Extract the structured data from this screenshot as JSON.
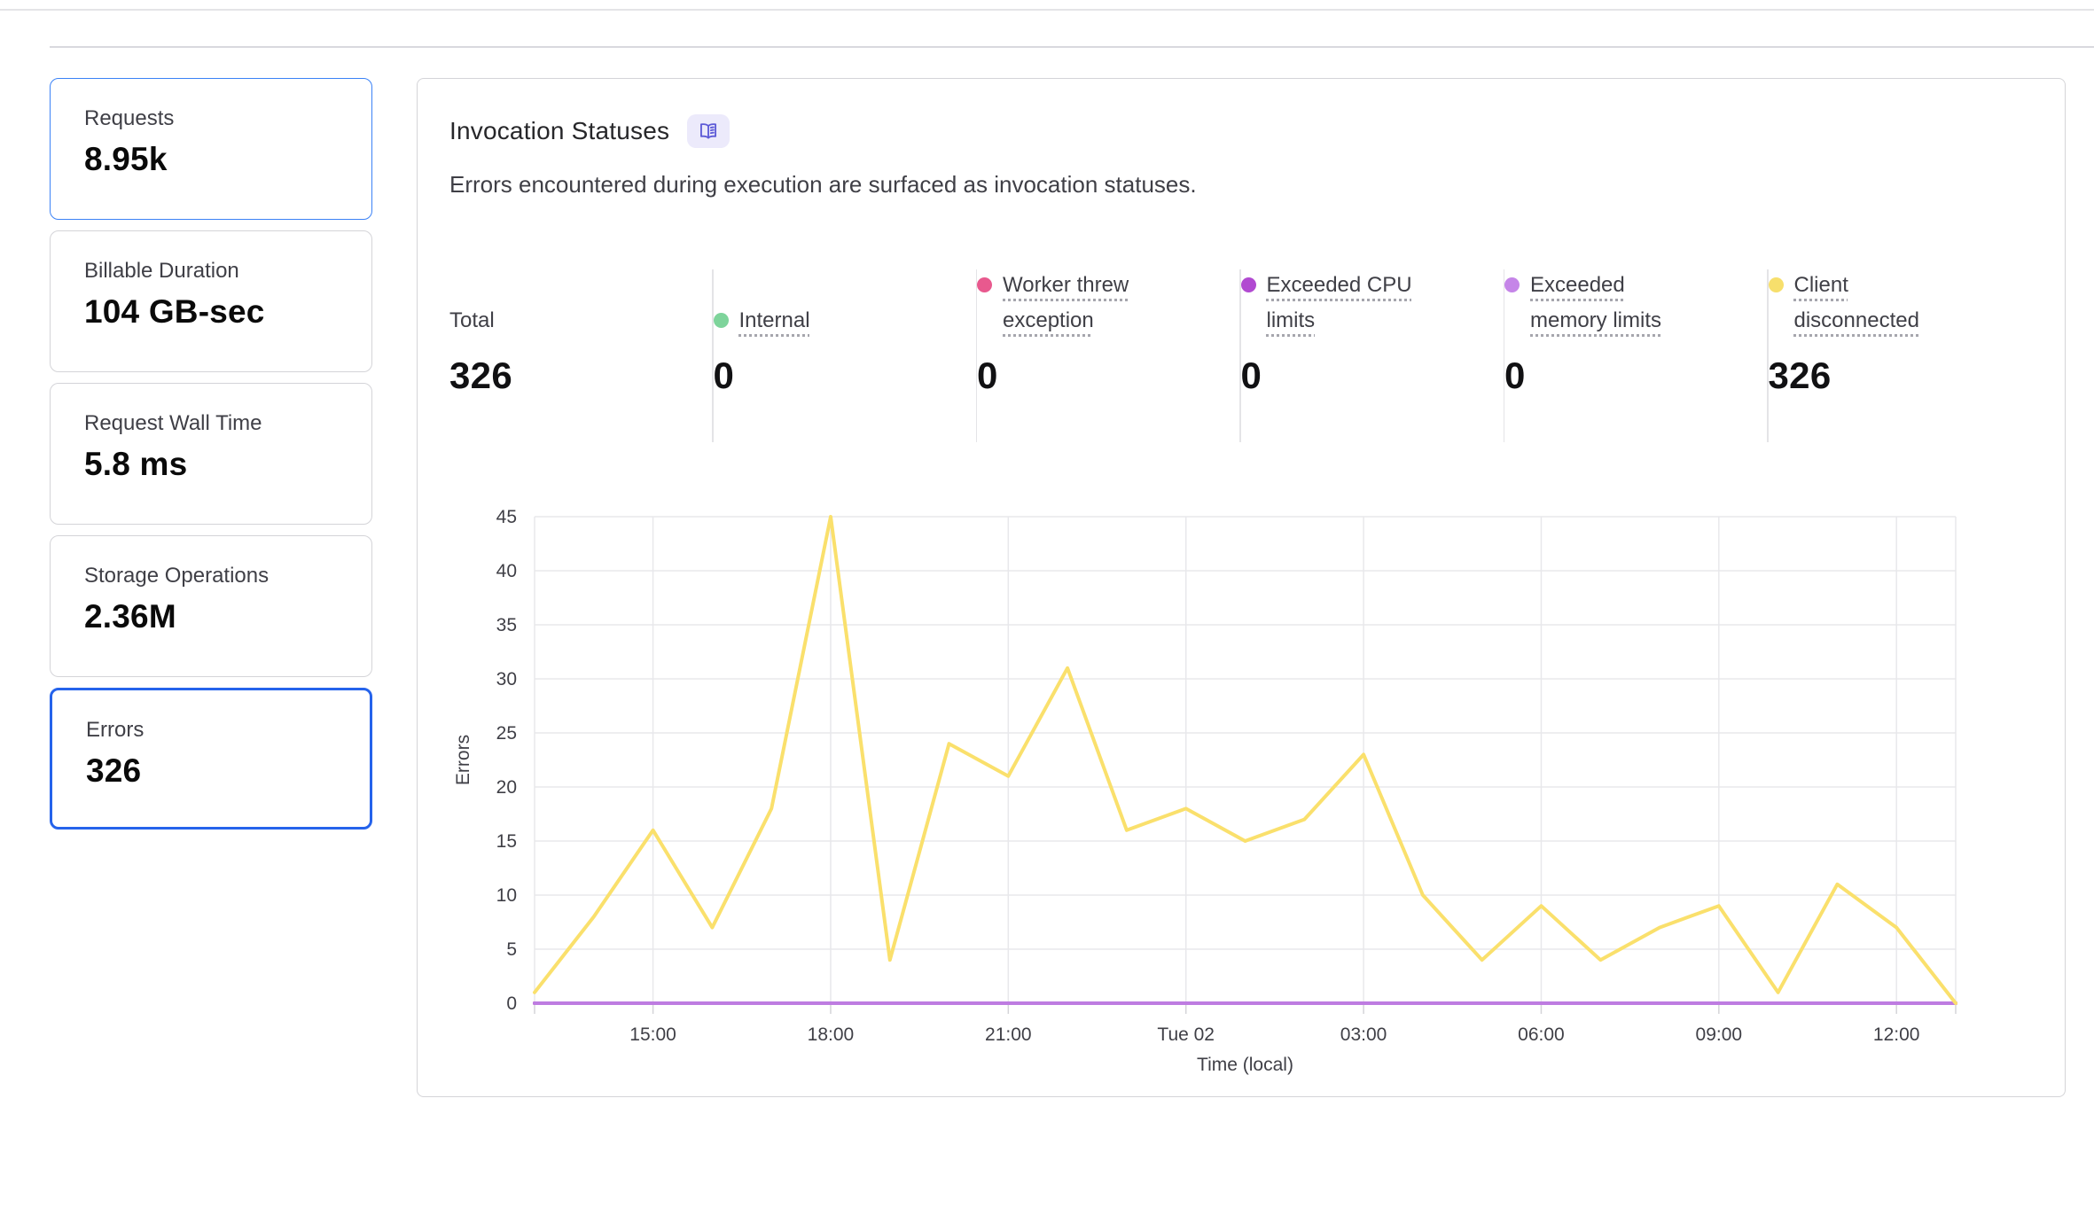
{
  "metric_cards": [
    {
      "label": "Requests",
      "value": "8.95k",
      "state": "selected"
    },
    {
      "label": "Billable Duration",
      "value": "104 GB-sec",
      "state": "default"
    },
    {
      "label": "Request Wall Time",
      "value": "5.8 ms",
      "state": "default"
    },
    {
      "label": "Storage Operations",
      "value": "2.36M",
      "state": "default"
    },
    {
      "label": "Errors",
      "value": "326",
      "state": "active"
    }
  ],
  "panel": {
    "title": "Invocation Statuses",
    "title_icon": "open-book-icon",
    "subtitle": "Errors encountered during execution are surfaced as invocation statuses.",
    "stats": [
      {
        "label": "Total",
        "value": "326",
        "dot_color": ""
      },
      {
        "label": "Internal",
        "value": "0",
        "dot_color": "#7ED49B"
      },
      {
        "label": "Worker threw\nexception",
        "value": "0",
        "dot_color": "#E8598E"
      },
      {
        "label": "Exceeded CPU\nlimits",
        "value": "0",
        "dot_color": "#B14AD1"
      },
      {
        "label": "Exceeded\nmemory limits",
        "value": "0",
        "dot_color": "#C585E8"
      },
      {
        "label": "Client\ndisconnected",
        "value": "326",
        "dot_color": "#F7DF6C"
      }
    ]
  },
  "chart_data": {
    "type": "line",
    "title": "",
    "xlabel": "Time (local)",
    "ylabel": "Errors",
    "ylim": [
      0,
      45
    ],
    "ytick_step": 5,
    "grid": true,
    "x": [
      "13:00",
      "14:00",
      "15:00",
      "16:00",
      "17:00",
      "18:00",
      "19:00",
      "20:00",
      "21:00",
      "22:00",
      "23:00",
      "Tue 02 00:00",
      "01:00",
      "02:00",
      "03:00",
      "04:00",
      "05:00",
      "06:00",
      "07:00",
      "08:00",
      "09:00",
      "10:00",
      "11:00",
      "12:00",
      "13:00"
    ],
    "x_tick_labels": [
      "15:00",
      "18:00",
      "21:00",
      "Tue 02",
      "03:00",
      "06:00",
      "09:00",
      "12:00"
    ],
    "x_tick_indices": [
      2,
      5,
      8,
      11,
      14,
      17,
      20,
      23
    ],
    "series": [
      {
        "name": "Internal",
        "color": "#7ED49B",
        "values": [
          0,
          0,
          0,
          0,
          0,
          0,
          0,
          0,
          0,
          0,
          0,
          0,
          0,
          0,
          0,
          0,
          0,
          0,
          0,
          0,
          0,
          0,
          0,
          0,
          0
        ]
      },
      {
        "name": "Worker threw exception",
        "color": "#E8598E",
        "values": [
          0,
          0,
          0,
          0,
          0,
          0,
          0,
          0,
          0,
          0,
          0,
          0,
          0,
          0,
          0,
          0,
          0,
          0,
          0,
          0,
          0,
          0,
          0,
          0,
          0
        ]
      },
      {
        "name": "Exceeded CPU limits",
        "color": "#B14AD1",
        "values": [
          0,
          0,
          0,
          0,
          0,
          0,
          0,
          0,
          0,
          0,
          0,
          0,
          0,
          0,
          0,
          0,
          0,
          0,
          0,
          0,
          0,
          0,
          0,
          0,
          0
        ]
      },
      {
        "name": "Exceeded memory limits",
        "color": "#BE7CE1",
        "values": [
          0,
          0,
          0,
          0,
          0,
          0,
          0,
          0,
          0,
          0,
          0,
          0,
          0,
          0,
          0,
          0,
          0,
          0,
          0,
          0,
          0,
          0,
          0,
          0,
          0
        ]
      },
      {
        "name": "Client disconnected",
        "color": "#FAE06C",
        "values": [
          1,
          8,
          16,
          7,
          18,
          45,
          4,
          24,
          21,
          31,
          16,
          18,
          15,
          17,
          23,
          10,
          4,
          9,
          4,
          7,
          9,
          1,
          11,
          7,
          0
        ]
      }
    ]
  }
}
